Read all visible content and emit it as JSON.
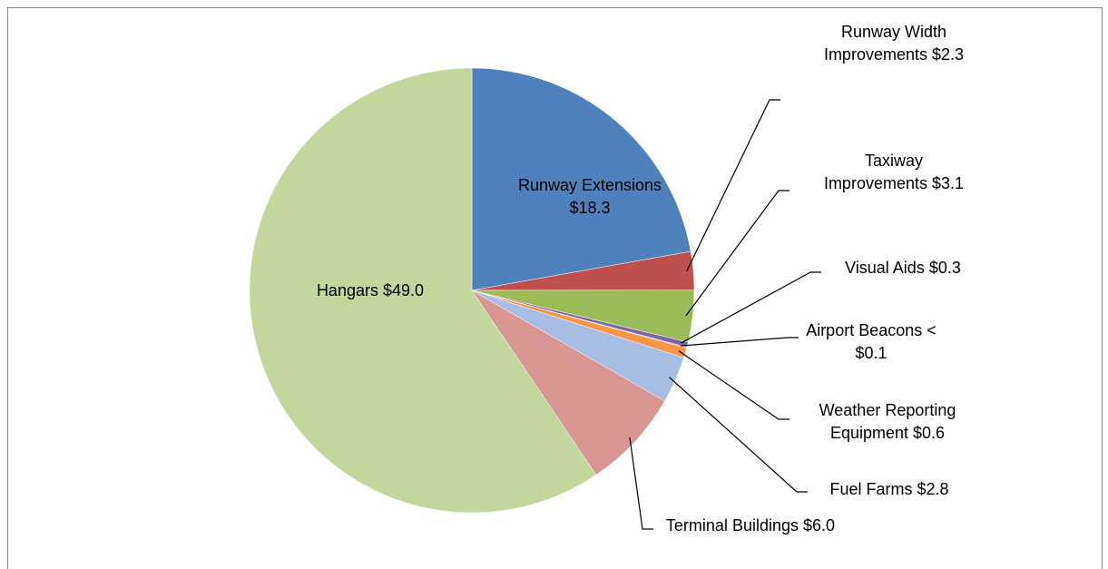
{
  "chart_data": {
    "type": "pie",
    "categories": [
      "Runway Extensions",
      "Runway Width Improvements",
      "Taxiway Improvements",
      "Visual Aids",
      "Airport Beacons",
      "Weather Reporting Equipment",
      "Fuel Farms",
      "Terminal Buildings",
      "Hangars"
    ],
    "values": [
      18.3,
      2.3,
      3.1,
      0.3,
      0.05,
      0.6,
      2.8,
      6.0,
      49.0
    ],
    "value_labels": [
      "$18.3",
      "$2.3",
      "$3.1",
      "$0.3",
      "< $0.1",
      "$0.6",
      "$2.8",
      "$6.0",
      "$49.0"
    ],
    "colors": [
      "#4f81bd",
      "#c0504d",
      "#9bbb59",
      "#8064a2",
      "#4bacc6",
      "#f79646",
      "#a7bde3",
      "#d99694",
      "#c3d69b"
    ]
  }
}
